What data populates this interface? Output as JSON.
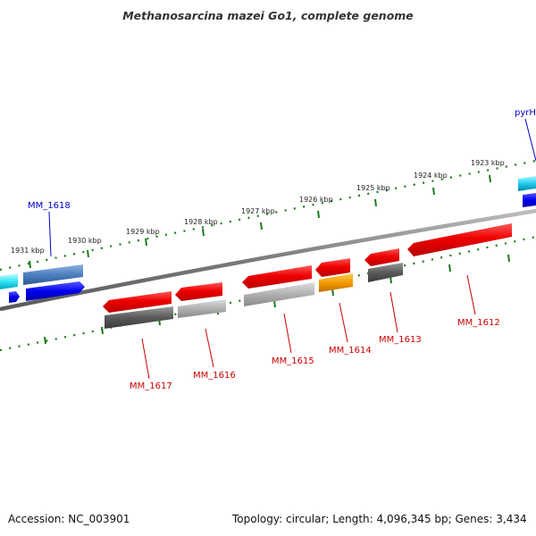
{
  "title": "Methanosarcina mazei Go1, complete genome",
  "footer": {
    "accession": "Accession: NC_003901",
    "topology": "Topology: circular; Length: 4,096,345 bp; Genes: 3,434"
  },
  "colors": {
    "forward_label": "#0000cc",
    "reverse_label": "#cc0000",
    "tick": "#1a7a1a",
    "backbone": "#808080"
  },
  "ticks": [
    "1931 kbp",
    "1930 kbp",
    "1929 kbp",
    "1928 kbp",
    "1927 kbp",
    "1926 kbp",
    "1925 kbp",
    "1924 kbp",
    "1923 kbp"
  ],
  "labeled_genes": [
    {
      "id": "mm1618",
      "name": "MM_1618",
      "strand": "forward"
    },
    {
      "id": "pyrh",
      "name": "pyrH",
      "strand": "forward"
    },
    {
      "id": "mm1617",
      "name": "MM_1617",
      "strand": "reverse"
    },
    {
      "id": "mm1616",
      "name": "MM_1616",
      "strand": "reverse"
    },
    {
      "id": "mm1615",
      "name": "MM_1615",
      "strand": "reverse"
    },
    {
      "id": "mm1614",
      "name": "MM_1614",
      "strand": "reverse"
    },
    {
      "id": "mm1613",
      "name": "MM_1613",
      "strand": "reverse"
    },
    {
      "id": "mm1612",
      "name": "MM_1612",
      "strand": "reverse"
    }
  ]
}
